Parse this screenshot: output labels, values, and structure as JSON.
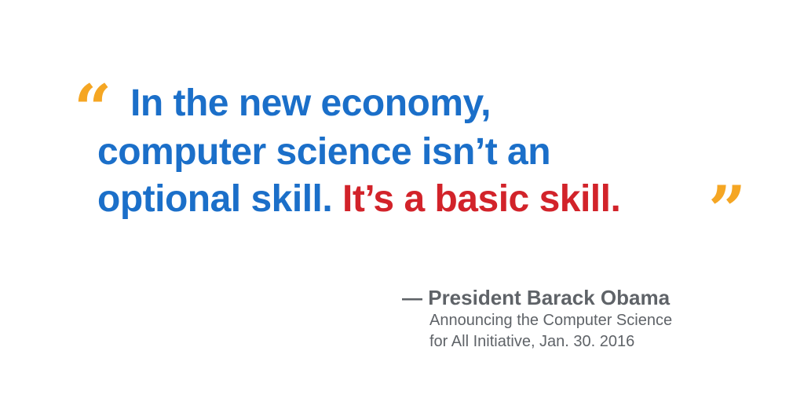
{
  "quote": {
    "open_mark": "“",
    "close_mark": "”",
    "line1": "In the new economy,",
    "line2": "computer science isn’t an",
    "line3_blue": "optional skill. ",
    "line3_red": "It’s a basic skill.",
    "colors": {
      "primary": "#1b6fc9",
      "emphasis": "#d2232a",
      "quote_marks": "#f5a623"
    }
  },
  "attribution": {
    "name": "— President Barack Obama",
    "subtitle_line1": "Announcing the Computer Science",
    "subtitle_line2": "for All Initiative, Jan. 30. 2016",
    "color": "#5f6368"
  }
}
